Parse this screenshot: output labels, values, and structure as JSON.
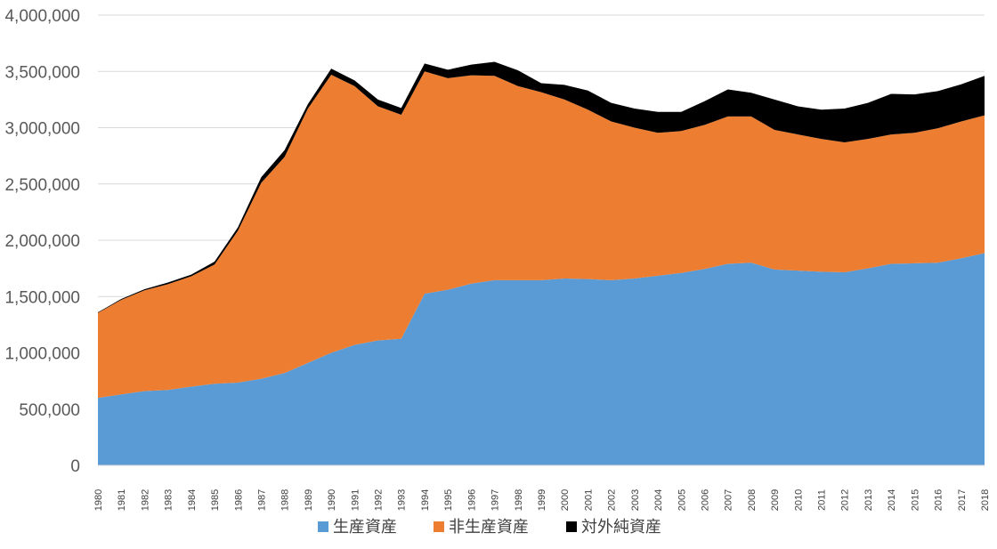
{
  "chart_data": {
    "type": "area",
    "stacked": true,
    "x": [
      "1980",
      "1981",
      "1982",
      "1983",
      "1984",
      "1985",
      "1986",
      "1987",
      "1988",
      "1989",
      "1990",
      "1991",
      "1992",
      "1993",
      "1994",
      "1995",
      "1996",
      "1997",
      "1998",
      "1999",
      "2000",
      "2001",
      "2002",
      "2003",
      "2004",
      "2005",
      "2006",
      "2007",
      "2008",
      "2009",
      "2010",
      "2011",
      "2012",
      "2013",
      "2014",
      "2015",
      "2016",
      "2017",
      "2018"
    ],
    "series": [
      {
        "name": "生産資産",
        "color": "#5b9bd5",
        "values": [
          600000,
          630000,
          660000,
          670000,
          700000,
          725000,
          735000,
          770000,
          820000,
          910000,
          1000000,
          1070000,
          1110000,
          1125000,
          1525000,
          1560000,
          1615000,
          1645000,
          1645000,
          1645000,
          1660000,
          1655000,
          1645000,
          1660000,
          1685000,
          1710000,
          1745000,
          1790000,
          1800000,
          1740000,
          1730000,
          1720000,
          1715000,
          1750000,
          1790000,
          1795000,
          1800000,
          1840000,
          1885000
        ]
      },
      {
        "name": "非生産資産",
        "color": "#ed7d31",
        "values": [
          755000,
          840000,
          895000,
          940000,
          980000,
          1060000,
          1350000,
          1740000,
          1920000,
          2260000,
          2470000,
          2300000,
          2080000,
          1990000,
          1975000,
          1880000,
          1850000,
          1815000,
          1725000,
          1670000,
          1590000,
          1505000,
          1410000,
          1340000,
          1270000,
          1260000,
          1280000,
          1310000,
          1300000,
          1240000,
          1210000,
          1180000,
          1155000,
          1150000,
          1150000,
          1160000,
          1195000,
          1215000,
          1225000
        ]
      },
      {
        "name": "対外純資産",
        "color": "#000000",
        "values": [
          5000,
          8000,
          10000,
          15000,
          15000,
          25000,
          30000,
          50000,
          60000,
          40000,
          55000,
          50000,
          60000,
          60000,
          70000,
          75000,
          95000,
          125000,
          140000,
          80000,
          130000,
          170000,
          165000,
          170000,
          185000,
          170000,
          210000,
          240000,
          210000,
          270000,
          250000,
          260000,
          300000,
          320000,
          360000,
          340000,
          330000,
          330000,
          350000
        ]
      }
    ],
    "y_ticks": [
      "0",
      "500,000",
      "1,000,000",
      "1,500,000",
      "2,000,000",
      "2,500,000",
      "3,000,000",
      "3,500,000",
      "4,000,000"
    ],
    "ylim": [
      0,
      4000000
    ],
    "grid": true,
    "legend_position": "bottom"
  }
}
